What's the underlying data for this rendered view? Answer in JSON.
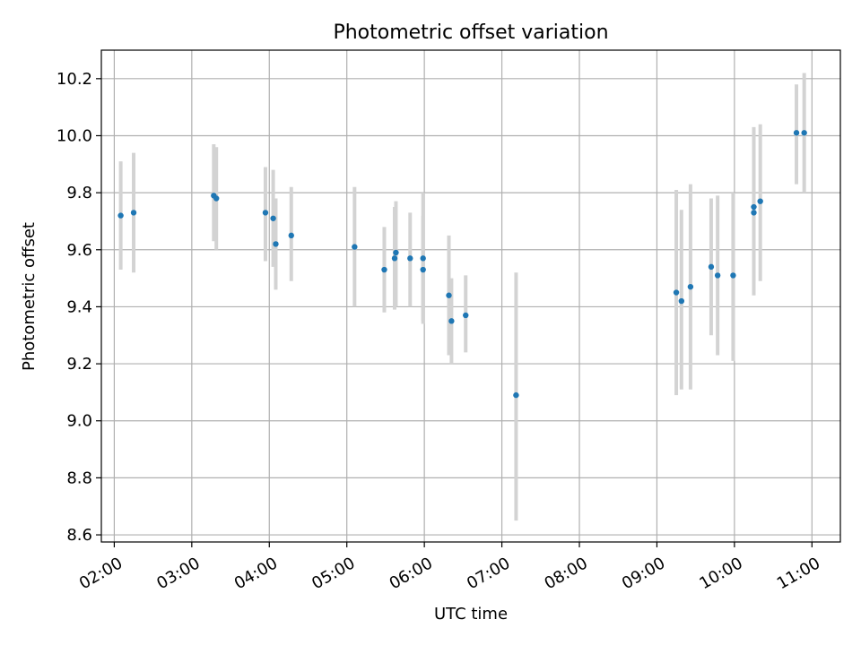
{
  "chart_data": {
    "type": "scatter",
    "title": "Photometric offset variation",
    "xlabel": "UTC time",
    "ylabel": "Photometric offset",
    "xlim": [
      "01:50",
      "11:22"
    ],
    "ylim": [
      8.575,
      10.3
    ],
    "x_ticks": [
      "02:00",
      "03:00",
      "04:00",
      "05:00",
      "06:00",
      "07:00",
      "08:00",
      "09:00",
      "10:00",
      "11:00"
    ],
    "y_ticks": [
      8.6,
      8.8,
      9.0,
      9.2,
      9.4,
      9.6,
      9.8,
      10.0,
      10.2
    ],
    "y_tick_labels": [
      "8.6",
      "8.8",
      "9.0",
      "9.2",
      "9.4",
      "9.6",
      "9.8",
      "10.0",
      "10.2"
    ],
    "grid": true,
    "marker_color": "#1f77b4",
    "errorbar_color": "#d3d3d3",
    "series": [
      {
        "points": [
          {
            "x": "02:05",
            "y": 9.72,
            "low": 9.53,
            "high": 9.91
          },
          {
            "x": "02:15",
            "y": 9.73,
            "low": 9.52,
            "high": 9.94
          },
          {
            "x": "03:17",
            "y": 9.79,
            "low": 9.63,
            "high": 9.97
          },
          {
            "x": "03:19",
            "y": 9.78,
            "low": 9.6,
            "high": 9.96
          },
          {
            "x": "03:57",
            "y": 9.73,
            "low": 9.56,
            "high": 9.89
          },
          {
            "x": "04:03",
            "y": 9.71,
            "low": 9.54,
            "high": 9.88
          },
          {
            "x": "04:05",
            "y": 9.62,
            "low": 9.46,
            "high": 9.78
          },
          {
            "x": "04:17",
            "y": 9.65,
            "low": 9.49,
            "high": 9.82
          },
          {
            "x": "05:06",
            "y": 9.61,
            "low": 9.4,
            "high": 9.82
          },
          {
            "x": "05:29",
            "y": 9.53,
            "low": 9.38,
            "high": 9.68
          },
          {
            "x": "05:37",
            "y": 9.57,
            "low": 9.39,
            "high": 9.75
          },
          {
            "x": "05:38",
            "y": 9.59,
            "low": 9.4,
            "high": 9.77
          },
          {
            "x": "05:49",
            "y": 9.57,
            "low": 9.4,
            "high": 9.73
          },
          {
            "x": "05:59",
            "y": 9.57,
            "low": 9.35,
            "high": 9.8
          },
          {
            "x": "05:59",
            "y": 9.53,
            "low": 9.34,
            "high": 9.72
          },
          {
            "x": "06:19",
            "y": 9.44,
            "low": 9.23,
            "high": 9.65
          },
          {
            "x": "06:21",
            "y": 9.35,
            "low": 9.2,
            "high": 9.5
          },
          {
            "x": "06:32",
            "y": 9.37,
            "low": 9.24,
            "high": 9.51
          },
          {
            "x": "07:11",
            "y": 9.09,
            "low": 8.65,
            "high": 9.52
          },
          {
            "x": "09:15",
            "y": 9.45,
            "low": 9.09,
            "high": 9.81
          },
          {
            "x": "09:19",
            "y": 9.42,
            "low": 9.11,
            "high": 9.74
          },
          {
            "x": "09:26",
            "y": 9.47,
            "low": 9.11,
            "high": 9.83
          },
          {
            "x": "09:42",
            "y": 9.54,
            "low": 9.3,
            "high": 9.78
          },
          {
            "x": "09:47",
            "y": 9.51,
            "low": 9.23,
            "high": 9.79
          },
          {
            "x": "09:59",
            "y": 9.51,
            "low": 9.21,
            "high": 9.8
          },
          {
            "x": "10:15",
            "y": 9.73,
            "low": 9.44,
            "high": 10.03
          },
          {
            "x": "10:15",
            "y": 9.75,
            "low": 9.49,
            "high": 10.02
          },
          {
            "x": "10:20",
            "y": 9.77,
            "low": 9.49,
            "high": 10.04
          },
          {
            "x": "10:48",
            "y": 10.01,
            "low": 9.83,
            "high": 10.18
          },
          {
            "x": "10:54",
            "y": 10.01,
            "low": 9.8,
            "high": 10.22
          }
        ]
      }
    ]
  }
}
